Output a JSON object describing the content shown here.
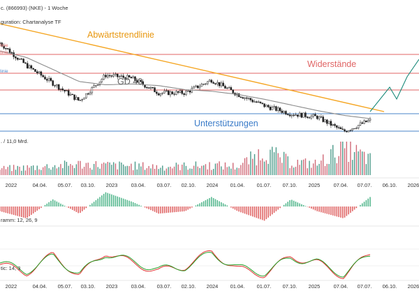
{
  "header": {
    "title": "c. (866993) (NKE) - 1 Woche",
    "config": "guration: Chartanalyse TF"
  },
  "main_chart": {
    "line_labels": {
      "l1": "linie",
      "l2": "linie",
      "l3": "linie"
    },
    "annotations": {
      "trend": "Abwärtstrendlinie",
      "resistances": "Widerstände",
      "ma": "GD 40",
      "supports": "Unterstützungen"
    },
    "colors": {
      "candle": "#222222",
      "ma": "#8c8c8c",
      "trend": "#f5a623",
      "resistance": "#e06666",
      "support": "#4a86c8",
      "projection": "#1a8a7a"
    }
  },
  "volume_panel": {
    "label": ". / 11,0 Mrd."
  },
  "macd_panel": {
    "label": "ramm: 12, 26, 9"
  },
  "stoch_panel": {
    "label": "tic: 14, 3"
  },
  "x_axis": {
    "ticks": [
      "2022",
      "04.04.",
      "05.07.",
      "03.10.",
      "2023",
      "03.04.",
      "03.07.",
      "02.10.",
      "2024",
      "01.04.",
      "01.07.",
      "07.10.",
      "2025",
      "07.04.",
      "07.07.",
      "06.10.",
      "2026"
    ]
  },
  "chart_data": [
    {
      "type": "line",
      "title": "",
      "xlabel": "",
      "ylabel": "",
      "x": [
        "2022",
        "04.04.",
        "05.07.",
        "03.10.",
        "2023",
        "03.04.",
        "03.07.",
        "02.10.",
        "2024",
        "01.04.",
        "01.07.",
        "07.10.",
        "2025",
        "07.04.",
        "07.07."
      ],
      "series": [
        {
          "values": [
            168,
            140,
            118,
            96,
            128,
            124,
            106,
            106,
            122,
            104,
            90,
            80,
            76,
            58,
            72
          ]
        },
        {
          "name": "GD 40",
          "values": [
            158,
            150,
            135,
            120,
            116,
            117,
            115,
            110,
            108,
            104,
            98,
            91,
            84,
            78,
            74
          ]
        }
      ],
      "annotations": [
        "Abwärtstrendlinie",
        "Widerstände",
        "GD 40",
        "Unterstützungen"
      ]
    },
    {
      "type": "bar",
      "title": "",
      "ylabel": "11,0 Mrd.",
      "categories": [
        "2022",
        "04.04.",
        "05.07.",
        "03.10.",
        "2023",
        "03.04.",
        "03.07.",
        "02.10.",
        "2024",
        "01.04.",
        "01.07.",
        "07.10.",
        "2025",
        "07.04.",
        "07.07."
      ],
      "values": [
        2.2,
        2.6,
        3.1,
        3.8,
        3.4,
        3.2,
        2.9,
        3.1,
        3.4,
        3.0,
        8.2,
        4.4,
        3.8,
        9.6,
        5.4
      ]
    },
    {
      "type": "bar",
      "title": "",
      "ylabel": "12, 26, 9",
      "categories": [
        "2022",
        "04.04.",
        "05.07.",
        "03.10.",
        "2023",
        "03.04.",
        "03.07.",
        "02.10.",
        "2024",
        "01.04.",
        "01.07.",
        "07.10.",
        "2025",
        "07.04.",
        "07.07."
      ],
      "values": [
        -2,
        -5,
        3,
        -3,
        6,
        2,
        -3,
        -2,
        4,
        -2,
        -6,
        3,
        -2,
        -5,
        4
      ]
    },
    {
      "type": "line",
      "title": "",
      "ylabel": "14, 3",
      "x": [
        "2022",
        "04.04.",
        "05.07.",
        "03.10.",
        "2023",
        "03.04.",
        "03.07.",
        "02.10.",
        "2024",
        "01.04.",
        "01.07.",
        "07.10.",
        "2025",
        "07.04.",
        "07.07."
      ],
      "series": [
        {
          "values": [
            45,
            20,
            75,
            10,
            85,
            50,
            25,
            40,
            85,
            30,
            15,
            70,
            50,
            10,
            80
          ]
        },
        {
          "values": [
            50,
            25,
            70,
            15,
            80,
            55,
            30,
            38,
            80,
            35,
            20,
            65,
            52,
            15,
            75
          ]
        }
      ]
    }
  ]
}
